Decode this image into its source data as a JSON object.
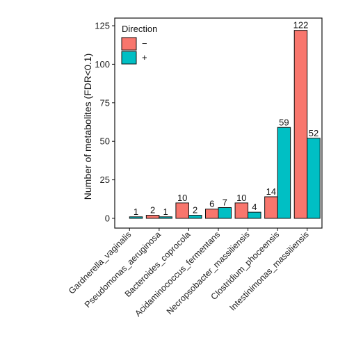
{
  "chart_data": {
    "type": "bar",
    "ylabel": "Number of metabolites (FDR<0.1)",
    "xlabel": "",
    "ylim": [
      0,
      125
    ],
    "yticks": [
      0,
      25,
      50,
      75,
      100,
      125
    ],
    "grid": false,
    "legend": {
      "title": "Direction",
      "placement": "top-left"
    },
    "categories": [
      "Gardnerella_vaginalis",
      "Pseudomonas_aeruginosa",
      "Bacteroides_coprocola",
      "Acidaminococcus_fermentans",
      "Necropsobacter_massiliensis",
      "Clostridium_phoceensis",
      "Intestinimonas_massiliensis"
    ],
    "series": [
      {
        "name": "−",
        "color": "#F8766D",
        "values": [
          0,
          2,
          10,
          6,
          10,
          14,
          122
        ],
        "labels": [
          "",
          "2",
          "10",
          "6",
          "10",
          "14",
          "122"
        ]
      },
      {
        "name": "+",
        "color": "#00BFC4",
        "values": [
          1,
          1,
          2,
          7,
          4,
          59,
          52
        ],
        "labels": [
          "1",
          "1",
          "2",
          "7",
          "4",
          "59",
          "52"
        ]
      }
    ]
  }
}
